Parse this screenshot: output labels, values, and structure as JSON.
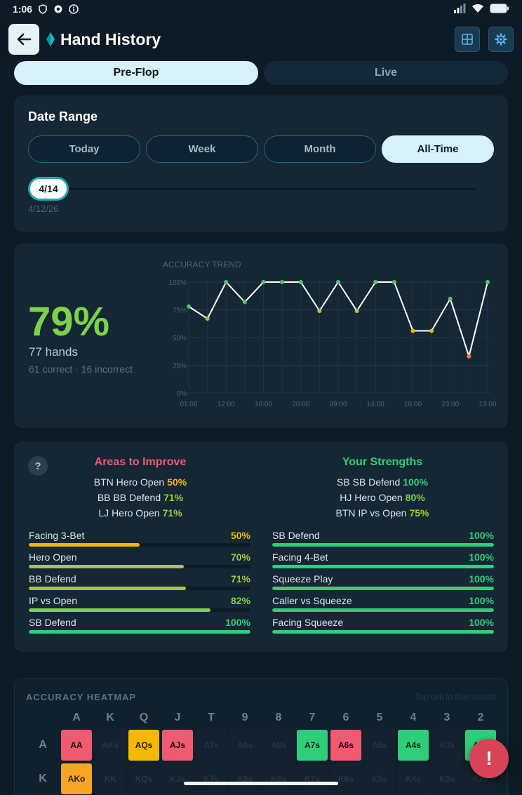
{
  "status": {
    "time": "1:06"
  },
  "header": {
    "title": "Hand History"
  },
  "mode_tabs": [
    {
      "label": "Pre-Flop",
      "active": true
    },
    {
      "label": "Live",
      "active": false
    }
  ],
  "date_range": {
    "title": "Date Range",
    "options": [
      "Today",
      "Week",
      "Month",
      "All-Time"
    ],
    "selected": "All-Time",
    "slider_label": "4/14",
    "slider_date": "4/12/26"
  },
  "accuracy": {
    "percent": "79%",
    "hands": "77 hands",
    "breakdown": "61 correct · 16 incorrect"
  },
  "chart_data": {
    "type": "line",
    "title": "ACCURACY TREND",
    "x": [
      "01:00",
      "",
      "12:00",
      "",
      "16:00",
      "",
      "20:00",
      "",
      "09:00",
      "",
      "14:00",
      "",
      "16:00",
      "",
      "23:00",
      "",
      "13:00"
    ],
    "xtick_labels": [
      "01:00",
      "12:00",
      "16:00",
      "20:00",
      "09:00",
      "14:00",
      "16:00",
      "23:00",
      "13:00"
    ],
    "values": [
      78,
      67,
      100,
      82,
      100,
      100,
      100,
      74,
      100,
      74,
      100,
      100,
      56,
      56,
      85,
      33,
      100
    ],
    "point_colors": [
      "#3fcf6a",
      "#a5c93a",
      "#3fcf6a",
      "#3fcf6a",
      "#3fcf6a",
      "#3fcf6a",
      "#3fcf6a",
      "#a5c93a",
      "#3fcf6a",
      "#a5c93a",
      "#3fcf6a",
      "#3fcf6a",
      "#f5b800",
      "#f5b800",
      "#3fcf6a",
      "#f07a3a",
      "#3fcf6a"
    ],
    "yticks": [
      "0%",
      "25%",
      "50%",
      "75%",
      "100%"
    ],
    "ylim": [
      0,
      100
    ],
    "grid": true
  },
  "areas": {
    "help": "?",
    "improve_title": "Areas to Improve",
    "improve_items": [
      {
        "label": "BTN Hero Open",
        "value": "50%",
        "color": "#f5b800"
      },
      {
        "label": "BB BB Defend",
        "value": "71%",
        "color": "#a5c93a"
      },
      {
        "label": "LJ Hero Open",
        "value": "71%",
        "color": "#a5c93a"
      }
    ],
    "strength_title": "Your Strengths",
    "strength_items": [
      {
        "label": "SB SB Defend",
        "value": "100%",
        "color": "#2fce78"
      },
      {
        "label": "HJ Hero Open",
        "value": "80%",
        "color": "#7cd34a"
      },
      {
        "label": "BTN IP vs Open",
        "value": "75%",
        "color": "#a5c93a"
      }
    ],
    "left_bars": [
      {
        "name": "Facing 3-Bet",
        "value": "50%",
        "fraction": 0.5,
        "color": "#f5b800"
      },
      {
        "name": "Hero Open",
        "value": "70%",
        "fraction": 0.7,
        "color": "#a5c93a"
      },
      {
        "name": "BB Defend",
        "value": "71%",
        "fraction": 0.71,
        "color": "#a5c93a"
      },
      {
        "name": "IP vs Open",
        "value": "82%",
        "fraction": 0.82,
        "color": "#7cd34a"
      },
      {
        "name": "SB Defend",
        "value": "100%",
        "fraction": 1.0,
        "color": "#2fce78"
      }
    ],
    "right_bars": [
      {
        "name": "SB Defend",
        "value": "100%",
        "fraction": 1.0,
        "color": "#2fce78"
      },
      {
        "name": "Facing 4-Bet",
        "value": "100%",
        "fraction": 1.0,
        "color": "#2fce78"
      },
      {
        "name": "Squeeze Play",
        "value": "100%",
        "fraction": 1.0,
        "color": "#2fce78"
      },
      {
        "name": "Caller vs Squeeze",
        "value": "100%",
        "fraction": 1.0,
        "color": "#2fce78"
      },
      {
        "name": "Facing Squeeze",
        "value": "100%",
        "fraction": 1.0,
        "color": "#2fce78"
      }
    ]
  },
  "heatmap": {
    "title": "ACCURACY HEATMAP",
    "hint": "Tap cell to filter hands",
    "columns": [
      "A",
      "K",
      "Q",
      "J",
      "T",
      "9",
      "8",
      "7",
      "6",
      "5",
      "4",
      "3",
      "2"
    ],
    "rows": [
      {
        "label": "A",
        "cells": [
          {
            "text": "AA",
            "state": "red"
          },
          {
            "text": "AKs",
            "state": "empty"
          },
          {
            "text": "AQs",
            "state": "amber"
          },
          {
            "text": "AJs",
            "state": "red"
          },
          {
            "text": "ATs",
            "state": "empty"
          },
          {
            "text": "A9s",
            "state": "empty"
          },
          {
            "text": "A8s",
            "state": "empty"
          },
          {
            "text": "A7s",
            "state": "green"
          },
          {
            "text": "A6s",
            "state": "red"
          },
          {
            "text": "A5s",
            "state": "empty"
          },
          {
            "text": "A4s",
            "state": "green"
          },
          {
            "text": "A3s",
            "state": "empty"
          },
          {
            "text": "A2s",
            "state": "green"
          }
        ]
      },
      {
        "label": "K",
        "cells": [
          {
            "text": "AKo",
            "state": "orange"
          },
          {
            "text": "KK",
            "state": "empty"
          },
          {
            "text": "KQs",
            "state": "empty"
          },
          {
            "text": "KJs",
            "state": "empty"
          },
          {
            "text": "KTs",
            "state": "empty"
          },
          {
            "text": "K9s",
            "state": "empty"
          },
          {
            "text": "K8s",
            "state": "empty"
          },
          {
            "text": "K7s",
            "state": "empty"
          },
          {
            "text": "K6s",
            "state": "empty"
          },
          {
            "text": "K5s",
            "state": "empty"
          },
          {
            "text": "K4s",
            "state": "empty"
          },
          {
            "text": "K3s",
            "state": "empty"
          },
          {
            "text": "K2s",
            "state": "empty"
          }
        ]
      }
    ]
  },
  "fab": {
    "label": "!"
  }
}
